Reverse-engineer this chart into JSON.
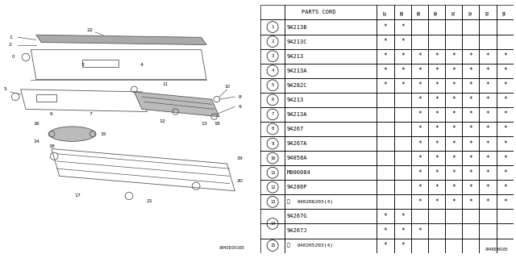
{
  "bg_color": "#ffffff",
  "line_color": "#555555",
  "table_header": [
    "PARTS CORD",
    "87",
    "88",
    "89",
    "90",
    "91",
    "92",
    "93",
    "94"
  ],
  "rows": [
    {
      "num": "1",
      "type": "normal",
      "s_prefix": false,
      "part": "94213B",
      "marks": [
        1,
        1,
        0,
        0,
        0,
        0,
        0,
        0
      ]
    },
    {
      "num": "2",
      "type": "normal",
      "s_prefix": false,
      "part": "94213C",
      "marks": [
        1,
        1,
        0,
        0,
        0,
        0,
        0,
        0
      ]
    },
    {
      "num": "3",
      "type": "normal",
      "s_prefix": false,
      "part": "94213",
      "marks": [
        1,
        1,
        1,
        1,
        1,
        1,
        1,
        1
      ]
    },
    {
      "num": "4",
      "type": "normal",
      "s_prefix": false,
      "part": "94213A",
      "marks": [
        1,
        1,
        1,
        1,
        1,
        1,
        1,
        1
      ]
    },
    {
      "num": "5",
      "type": "normal",
      "s_prefix": false,
      "part": "94282C",
      "marks": [
        1,
        1,
        1,
        1,
        1,
        1,
        1,
        1
      ]
    },
    {
      "num": "6",
      "type": "normal",
      "s_prefix": false,
      "part": "94213",
      "marks": [
        0,
        0,
        1,
        1,
        1,
        1,
        1,
        1
      ]
    },
    {
      "num": "7",
      "type": "normal",
      "s_prefix": false,
      "part": "94213A",
      "marks": [
        0,
        0,
        1,
        1,
        1,
        1,
        1,
        1
      ]
    },
    {
      "num": "8",
      "type": "normal",
      "s_prefix": false,
      "part": "94267",
      "marks": [
        0,
        0,
        1,
        1,
        1,
        1,
        1,
        1
      ]
    },
    {
      "num": "9",
      "type": "normal",
      "s_prefix": false,
      "part": "94267A",
      "marks": [
        0,
        0,
        1,
        1,
        1,
        1,
        1,
        1
      ]
    },
    {
      "num": "10",
      "type": "normal",
      "s_prefix": false,
      "part": "94058A",
      "marks": [
        0,
        0,
        1,
        1,
        1,
        1,
        1,
        1
      ]
    },
    {
      "num": "11",
      "type": "normal",
      "s_prefix": false,
      "part": "M000084",
      "marks": [
        0,
        0,
        1,
        1,
        1,
        1,
        1,
        1
      ]
    },
    {
      "num": "12",
      "type": "normal",
      "s_prefix": false,
      "part": "94286P",
      "marks": [
        0,
        0,
        1,
        1,
        1,
        1,
        1,
        1
      ]
    },
    {
      "num": "13",
      "type": "normal",
      "s_prefix": true,
      "part": "040206203(4)",
      "marks": [
        0,
        0,
        1,
        1,
        1,
        1,
        1,
        1
      ]
    },
    {
      "num": "14",
      "type": "split",
      "s_prefix": false,
      "part": "94267G",
      "marks": [
        1,
        1,
        0,
        0,
        0,
        0,
        0,
        0
      ],
      "part2": "94267J",
      "marks2": [
        1,
        1,
        1,
        0,
        0,
        0,
        0,
        0
      ]
    },
    {
      "num": "15",
      "type": "normal",
      "s_prefix": true,
      "part": "040205203(4)",
      "marks": [
        1,
        1,
        0,
        0,
        0,
        0,
        0,
        0
      ]
    }
  ],
  "footer": "A940D00165"
}
